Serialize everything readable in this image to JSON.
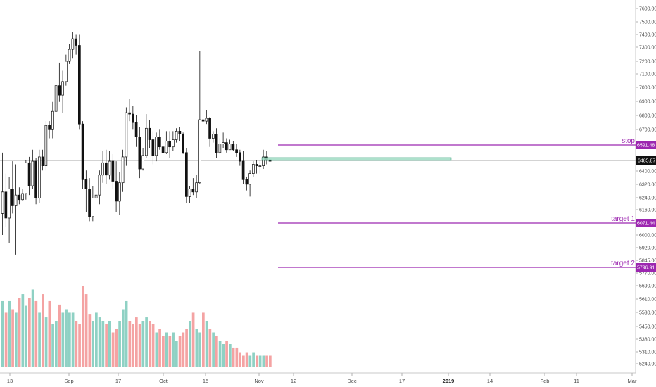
{
  "chart_data": {
    "type": "candlestick",
    "price_axis": {
      "ticks": [
        "7600.00",
        "7500.00",
        "7400.00",
        "7300.00",
        "7200.00",
        "7100.00",
        "7000.00",
        "6900.00",
        "6800.00",
        "6700.00",
        "6590.00",
        "6485.00",
        "6400.00",
        "6320.00",
        "6240.00",
        "6160.00",
        "6080.00",
        "6000.00",
        "5920.00",
        "5845.00",
        "5770.00",
        "5690.00",
        "5610.00",
        "5530.00",
        "5450.00",
        "5380.00",
        "5310.00",
        "5240.00"
      ],
      "current_price": "6485.87"
    },
    "time_axis": {
      "labels": [
        {
          "text": "13",
          "bold": false
        },
        {
          "text": "Sep",
          "bold": false
        },
        {
          "text": "17",
          "bold": false
        },
        {
          "text": "Oct",
          "bold": false
        },
        {
          "text": "15",
          "bold": false
        },
        {
          "text": "Nov",
          "bold": false
        },
        {
          "text": "12",
          "bold": false
        },
        {
          "text": "Dec",
          "bold": false
        },
        {
          "text": "17",
          "bold": false
        },
        {
          "text": "2019",
          "bold": true
        },
        {
          "text": "14",
          "bold": false
        },
        {
          "text": "Feb",
          "bold": false
        },
        {
          "text": "11",
          "bold": false
        },
        {
          "text": "Mar",
          "bold": false
        }
      ]
    },
    "levels": [
      {
        "name": "stop",
        "value": "6591.48",
        "color": "#9c27b0"
      },
      {
        "name": "target 1",
        "value": "6071.44",
        "color": "#9c27b0"
      },
      {
        "name": "target 2",
        "value": "5796.91",
        "color": "#9c27b0"
      }
    ],
    "entry_zone": {
      "low": 6485,
      "high": 6505,
      "color": "#7fcfb0"
    },
    "candles": [
      [
        6140,
        6280,
        6000,
        6540
      ],
      [
        6280,
        6110,
        6050,
        6400
      ],
      [
        6110,
        6300,
        5950,
        6380
      ],
      [
        6300,
        6190,
        6140,
        6480
      ],
      [
        6190,
        6260,
        5880,
        6460
      ],
      [
        6260,
        6230,
        6200,
        6310
      ],
      [
        6230,
        6270,
        6220,
        6300
      ],
      [
        6270,
        6470,
        6230,
        6490
      ],
      [
        6470,
        6320,
        6260,
        6510
      ],
      [
        6320,
        6480,
        6300,
        6560
      ],
      [
        6480,
        6240,
        6200,
        6500
      ],
      [
        6240,
        6510,
        6210,
        6560
      ],
      [
        6510,
        6450,
        6420,
        6560
      ],
      [
        6450,
        6730,
        6420,
        6760
      ],
      [
        6730,
        6700,
        6640,
        6760
      ],
      [
        6700,
        6830,
        6640,
        6900
      ],
      [
        6830,
        7020,
        6800,
        7100
      ],
      [
        7020,
        6950,
        6900,
        7190
      ],
      [
        6950,
        7050,
        6820,
        7130
      ],
      [
        7050,
        7200,
        7020,
        7250
      ],
      [
        7200,
        7290,
        7180,
        7330
      ],
      [
        7290,
        7370,
        7220,
        7420
      ],
      [
        7370,
        7320,
        7250,
        7400
      ],
      [
        7320,
        6740,
        6700,
        7400
      ],
      [
        6740,
        6360,
        6300,
        6760
      ],
      [
        6360,
        6300,
        6150,
        6420
      ],
      [
        6300,
        6120,
        6090,
        6370
      ],
      [
        6120,
        6240,
        6090,
        6320
      ],
      [
        6240,
        6260,
        6150,
        6310
      ],
      [
        6260,
        6390,
        6200,
        6420
      ],
      [
        6390,
        6470,
        6340,
        6550
      ],
      [
        6470,
        6390,
        6330,
        6560
      ],
      [
        6390,
        6480,
        6360,
        6550
      ],
      [
        6480,
        6350,
        6300,
        6530
      ],
      [
        6350,
        6220,
        6150,
        6480
      ],
      [
        6220,
        6340,
        6130,
        6410
      ],
      [
        6340,
        6510,
        6280,
        6560
      ],
      [
        6510,
        6820,
        6450,
        6860
      ],
      [
        6820,
        6810,
        6760,
        6920
      ],
      [
        6810,
        6750,
        6700,
        6870
      ],
      [
        6750,
        6650,
        6580,
        6800
      ],
      [
        6650,
        6430,
        6370,
        6720
      ],
      [
        6430,
        6520,
        6420,
        6570
      ],
      [
        6520,
        6710,
        6500,
        6810
      ],
      [
        6710,
        6630,
        6570,
        6770
      ],
      [
        6630,
        6520,
        6460,
        6690
      ],
      [
        6520,
        6650,
        6480,
        6680
      ],
      [
        6650,
        6580,
        6560,
        6700
      ],
      [
        6580,
        6540,
        6460,
        6640
      ],
      [
        6540,
        6620,
        6530,
        6690
      ],
      [
        6620,
        6580,
        6500,
        6690
      ],
      [
        6580,
        6630,
        6550,
        6690
      ],
      [
        6630,
        6690,
        6610,
        6710
      ],
      [
        6690,
        6670,
        6620,
        6720
      ],
      [
        6670,
        6540,
        6530,
        6680
      ],
      [
        6540,
        6250,
        6210,
        6570
      ],
      [
        6250,
        6300,
        6210,
        6320
      ],
      [
        6300,
        6280,
        6260,
        6370
      ],
      [
        6280,
        6340,
        6240,
        6390
      ],
      [
        6340,
        6770,
        6330,
        7280
      ],
      [
        6770,
        6760,
        6710,
        6880
      ],
      [
        6760,
        6780,
        6740,
        6840
      ],
      [
        6780,
        6640,
        6580,
        6790
      ],
      [
        6640,
        6670,
        6610,
        6690
      ],
      [
        6670,
        6540,
        6500,
        6710
      ],
      [
        6540,
        6600,
        6530,
        6640
      ],
      [
        6600,
        6610,
        6570,
        6680
      ],
      [
        6610,
        6560,
        6540,
        6640
      ],
      [
        6560,
        6600,
        6560,
        6630
      ],
      [
        6600,
        6560,
        6550,
        6620
      ],
      [
        6560,
        6540,
        6510,
        6600
      ],
      [
        6540,
        6480,
        6450,
        6560
      ],
      [
        6480,
        6360,
        6330,
        6550
      ],
      [
        6360,
        6330,
        6290,
        6380
      ],
      [
        6330,
        6400,
        6250,
        6420
      ],
      [
        6400,
        6460,
        6380,
        6480
      ],
      [
        6460,
        6450,
        6400,
        6490
      ],
      [
        6450,
        6450,
        6400,
        6490
      ],
      [
        6450,
        6510,
        6430,
        6560
      ],
      [
        6510,
        6490,
        6460,
        6550
      ],
      [
        6490,
        6480,
        6460,
        6530
      ]
    ],
    "volumes": [
      57,
      47,
      57,
      50,
      47,
      60,
      63,
      53,
      60,
      67,
      57,
      47,
      63,
      43,
      57,
      37,
      40,
      54,
      47,
      50,
      47,
      47,
      40,
      37,
      70,
      63,
      46,
      40,
      47,
      43,
      40,
      37,
      40,
      30,
      33,
      40,
      50,
      57,
      40,
      37,
      43,
      37,
      40,
      43,
      40,
      37,
      30,
      33,
      27,
      30,
      27,
      30,
      23,
      27,
      30,
      33,
      40,
      47,
      33,
      30,
      47,
      40,
      33,
      30,
      27,
      23,
      20,
      23,
      20,
      17,
      17,
      13,
      10,
      13,
      10,
      13,
      10,
      10,
      10,
      10,
      10
    ]
  }
}
